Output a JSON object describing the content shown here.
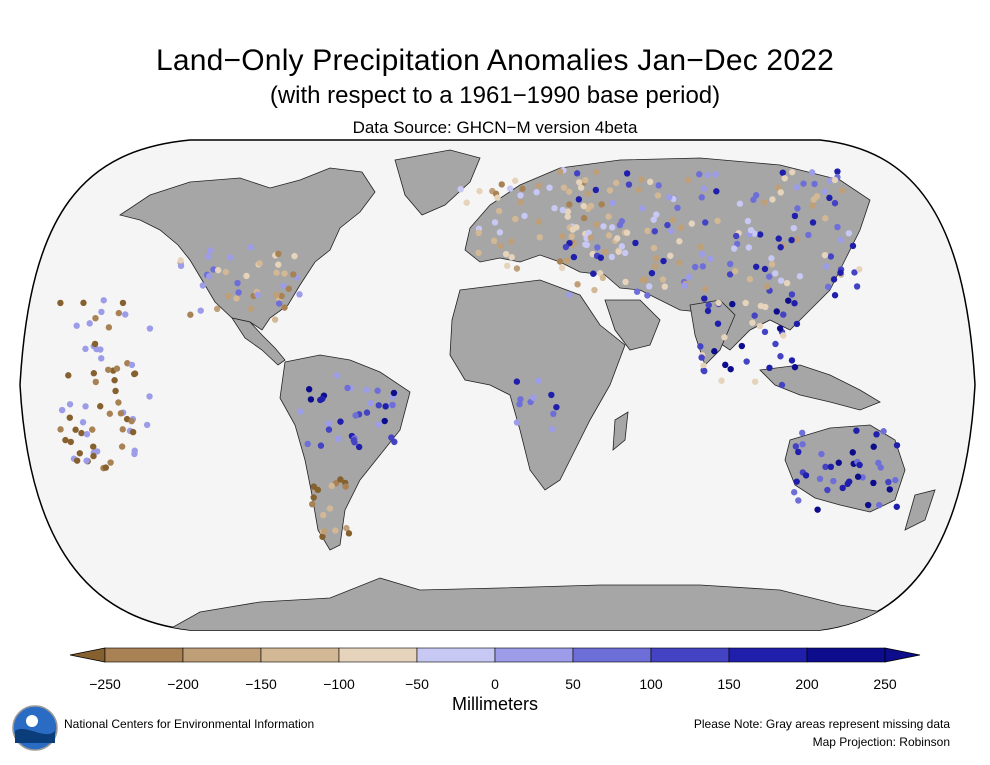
{
  "title": "Land−Only Precipitation Anomalies Jan−Dec 2022",
  "subtitle": "(with respect to a 1961−1990 base period)",
  "source": "Data Source: GHCN−M version 4beta",
  "legend": {
    "units": "Millimeters",
    "ticks": [
      "−250",
      "−200",
      "−150",
      "−100",
      "−50",
      "0",
      "50",
      "100",
      "150",
      "200",
      "250"
    ],
    "colors": [
      "#86602f",
      "#a88254",
      "#bf9f78",
      "#d2b894",
      "#e6d3bb",
      "#c8c8f4",
      "#9c9ce8",
      "#6e6ed8",
      "#4343c4",
      "#1f1fab",
      "#0c0c8c"
    ]
  },
  "footer": {
    "org": "National Centers for Environmental Information",
    "logo_text": "NOAA",
    "note": "Please Note: Gray areas represent missing data",
    "projection": "Map Projection: Robinson"
  },
  "colors": {
    "land": "#a6a6a6",
    "ocean": "#f5f5f5",
    "border": "#000000"
  }
}
